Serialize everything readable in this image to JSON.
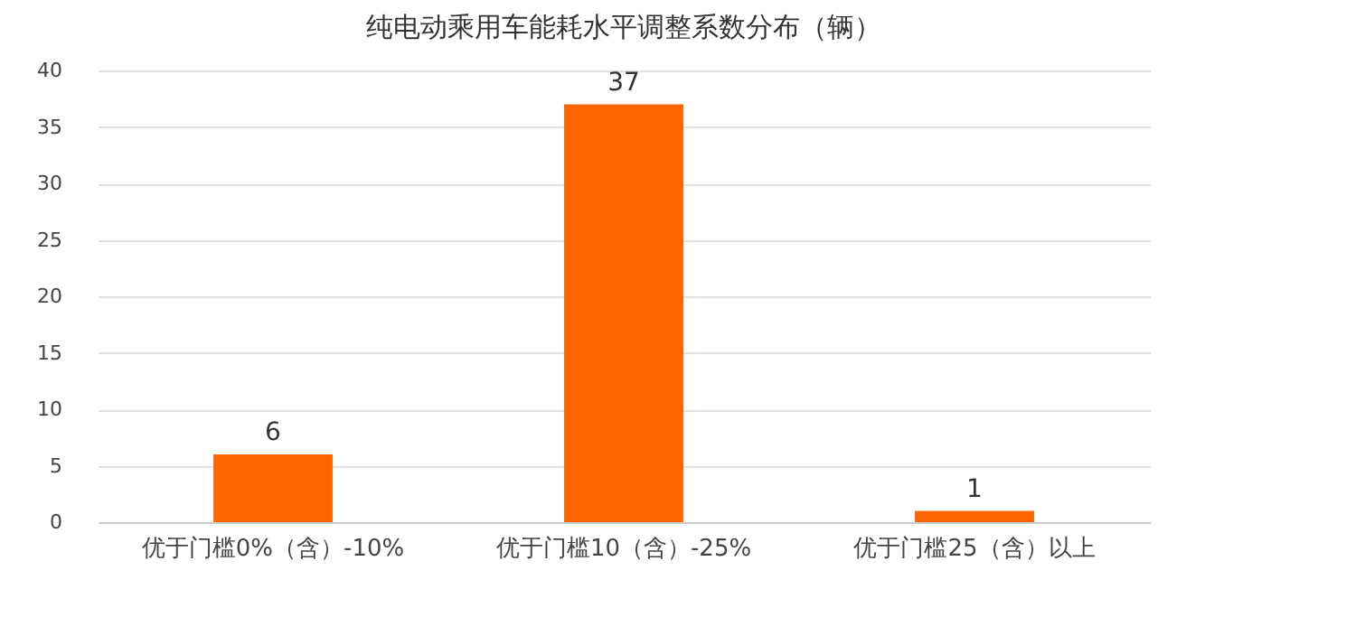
{
  "chart_data": {
    "type": "bar",
    "title": "纯电动乘用车能耗水平调整系数分布（辆）",
    "categories": [
      "优于门槛0%（含）-10%",
      "优于门槛10（含）-25%",
      "优于门槛25（含）以上"
    ],
    "values": [
      6,
      37,
      1
    ],
    "color": "#ff6600",
    "ylim": [
      0,
      40
    ],
    "yticks": [
      0,
      5,
      10,
      15,
      20,
      25,
      30,
      35,
      40
    ],
    "grid": "y",
    "data_labels": true
  }
}
